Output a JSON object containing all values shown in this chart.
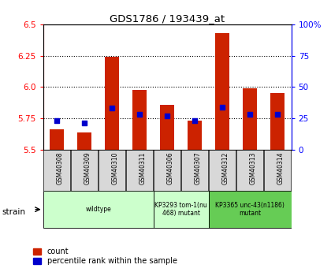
{
  "title": "GDS1786 / 193439_at",
  "samples": [
    "GSM40308",
    "GSM40309",
    "GSM40310",
    "GSM40311",
    "GSM40306",
    "GSM40307",
    "GSM40312",
    "GSM40313",
    "GSM40314"
  ],
  "count_values": [
    5.66,
    5.64,
    6.24,
    5.98,
    5.86,
    5.73,
    6.43,
    5.99,
    5.95
  ],
  "percentile_values": [
    5.73,
    5.71,
    5.83,
    5.78,
    5.77,
    5.73,
    5.84,
    5.78,
    5.78
  ],
  "ylim": [
    5.5,
    6.5
  ],
  "yticks": [
    5.5,
    5.75,
    6.0,
    6.25,
    6.5
  ],
  "right_yticks_pct": [
    0,
    25,
    50,
    75,
    100
  ],
  "right_ylabels": [
    "0",
    "25",
    "50",
    "75",
    "100%"
  ],
  "bar_color": "#cc2200",
  "percentile_color": "#0000cc",
  "group_labels": [
    "wildtype",
    "KP3293 tom-1(nu\n468) mutant",
    "KP3365 unc-43(n1186)\nmutant"
  ],
  "group_starts": [
    0,
    4,
    6
  ],
  "group_ends": [
    4,
    6,
    9
  ],
  "group_colors": [
    "#ccffcc",
    "#ccffcc",
    "#66cc55"
  ],
  "legend_count_label": "count",
  "legend_percentile_label": "percentile rank within the sample",
  "strain_label": "strain",
  "bar_width": 0.5
}
